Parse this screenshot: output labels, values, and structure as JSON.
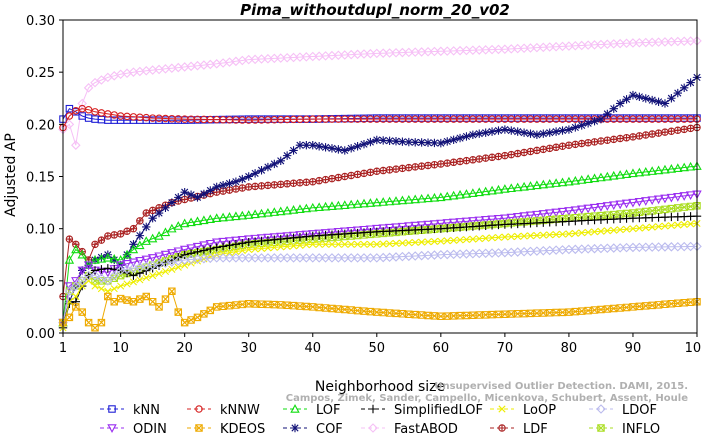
{
  "chart_data": {
    "type": "line",
    "title": "Pima_withoutdupl_norm_20_v02",
    "xlabel": "Neighborhood size",
    "ylabel": "Adjusted AP",
    "xlim": [
      1,
      100
    ],
    "ylim": [
      0,
      0.3
    ],
    "xticks": [
      1,
      10,
      20,
      30,
      40,
      50,
      60,
      70,
      80,
      90,
      100
    ],
    "yticks": [
      "0.00",
      "0.05",
      "0.10",
      "0.15",
      "0.20",
      "0.25",
      "0.30"
    ],
    "grid": false,
    "legend_position": "bottom",
    "watermark": [
      "Campos, Zimek, Sander, Campello, Micenkova, Schubert, Assent, Houle",
      "Unsupervised Outlier Detection. DAMI, 2015."
    ],
    "series": [
      {
        "name": "kNN",
        "color": "#1f1fd6",
        "marker": "square",
        "x": [
          1,
          2,
          3,
          4,
          5,
          6,
          8,
          10,
          15,
          20,
          30,
          40,
          50,
          60,
          70,
          80,
          90,
          100
        ],
        "y": [
          0.205,
          0.215,
          0.212,
          0.208,
          0.206,
          0.205,
          0.204,
          0.204,
          0.204,
          0.204,
          0.205,
          0.205,
          0.206,
          0.206,
          0.206,
          0.206,
          0.206,
          0.206
        ]
      },
      {
        "name": "kNNW",
        "color": "#d62020",
        "marker": "circle",
        "x": [
          1,
          2,
          3,
          4,
          5,
          6,
          8,
          10,
          15,
          20,
          30,
          40,
          50,
          60,
          70,
          80,
          90,
          100
        ],
        "y": [
          0.197,
          0.208,
          0.213,
          0.215,
          0.214,
          0.212,
          0.21,
          0.208,
          0.206,
          0.205,
          0.204,
          0.205,
          0.205,
          0.205,
          0.205,
          0.205,
          0.205,
          0.205
        ]
      },
      {
        "name": "LOF",
        "color": "#11dd11",
        "marker": "triangle-up",
        "x": [
          1,
          2,
          3,
          4,
          5,
          6,
          8,
          10,
          12,
          14,
          16,
          18,
          20,
          25,
          30,
          40,
          50,
          60,
          70,
          80,
          90,
          100
        ],
        "y": [
          0.01,
          0.07,
          0.08,
          0.075,
          0.065,
          0.07,
          0.072,
          0.07,
          0.08,
          0.088,
          0.093,
          0.1,
          0.105,
          0.11,
          0.113,
          0.12,
          0.125,
          0.13,
          0.138,
          0.145,
          0.153,
          0.16
        ]
      },
      {
        "name": "SimplifiedLOF",
        "color": "#000000",
        "marker": "plus",
        "x": [
          1,
          2,
          3,
          4,
          5,
          6,
          8,
          10,
          12,
          15,
          18,
          20,
          25,
          30,
          40,
          50,
          60,
          70,
          80,
          90,
          100
        ],
        "y": [
          0.005,
          0.028,
          0.03,
          0.045,
          0.055,
          0.06,
          0.062,
          0.06,
          0.055,
          0.062,
          0.07,
          0.075,
          0.082,
          0.087,
          0.093,
          0.097,
          0.1,
          0.104,
          0.107,
          0.11,
          0.112
        ]
      },
      {
        "name": "LoOP",
        "color": "#eeee00",
        "marker": "x",
        "x": [
          1,
          2,
          3,
          4,
          5,
          6,
          8,
          10,
          15,
          20,
          25,
          30,
          40,
          50,
          60,
          70,
          80,
          90,
          100
        ],
        "y": [
          0.005,
          0.03,
          0.035,
          0.045,
          0.05,
          0.045,
          0.04,
          0.045,
          0.055,
          0.065,
          0.075,
          0.08,
          0.085,
          0.085,
          0.088,
          0.092,
          0.095,
          0.1,
          0.105
        ]
      },
      {
        "name": "LDOF",
        "color": "#bbbbee",
        "marker": "diamond",
        "x": [
          1,
          2,
          3,
          4,
          5,
          6,
          8,
          10,
          15,
          20,
          25,
          30,
          40,
          50,
          60,
          70,
          80,
          90,
          100
        ],
        "y": [
          0.01,
          0.04,
          0.045,
          0.05,
          0.055,
          0.055,
          0.05,
          0.06,
          0.065,
          0.07,
          0.072,
          0.072,
          0.072,
          0.072,
          0.075,
          0.077,
          0.08,
          0.082,
          0.083
        ]
      },
      {
        "name": "ODIN",
        "color": "#9a2ef0",
        "marker": "triangle-down",
        "x": [
          1,
          2,
          3,
          4,
          5,
          6,
          8,
          10,
          15,
          20,
          25,
          30,
          40,
          50,
          60,
          70,
          80,
          90,
          100
        ],
        "y": [
          0.01,
          0.045,
          0.05,
          0.06,
          0.065,
          0.06,
          0.058,
          0.065,
          0.072,
          0.08,
          0.087,
          0.09,
          0.095,
          0.1,
          0.105,
          0.11,
          0.117,
          0.125,
          0.133
        ]
      },
      {
        "name": "KDEOS",
        "color": "#eeaa00",
        "marker": "square-x",
        "x": [
          1,
          2,
          3,
          4,
          5,
          6,
          7,
          8,
          9,
          10,
          12,
          14,
          16,
          18,
          19,
          20,
          22,
          25,
          30,
          35,
          40,
          50,
          60,
          70,
          80,
          90,
          100
        ],
        "y": [
          0.01,
          0.015,
          0.025,
          0.02,
          0.01,
          0.005,
          0.01,
          0.035,
          0.03,
          0.033,
          0.03,
          0.035,
          0.025,
          0.04,
          0.02,
          0.01,
          0.015,
          0.025,
          0.028,
          0.027,
          0.025,
          0.02,
          0.016,
          0.018,
          0.02,
          0.025,
          0.03
        ]
      },
      {
        "name": "COF",
        "color": "#111177",
        "marker": "asterisk",
        "x": [
          1,
          2,
          3,
          4,
          5,
          6,
          8,
          10,
          12,
          15,
          18,
          20,
          22,
          25,
          28,
          30,
          35,
          38,
          40,
          45,
          50,
          55,
          60,
          65,
          70,
          75,
          80,
          85,
          88,
          90,
          95,
          98,
          100
        ],
        "y": [
          0.01,
          0.03,
          0.045,
          0.06,
          0.065,
          0.07,
          0.075,
          0.065,
          0.085,
          0.11,
          0.125,
          0.135,
          0.13,
          0.14,
          0.145,
          0.15,
          0.165,
          0.18,
          0.18,
          0.175,
          0.185,
          0.183,
          0.182,
          0.19,
          0.195,
          0.19,
          0.195,
          0.205,
          0.22,
          0.228,
          0.22,
          0.235,
          0.245
        ]
      },
      {
        "name": "FastABOD",
        "color": "#f6c0f6",
        "marker": "diamond",
        "x": [
          1,
          2,
          3,
          4,
          5,
          6,
          8,
          10,
          12,
          15,
          20,
          25,
          30,
          40,
          50,
          60,
          70,
          80,
          90,
          100
        ],
        "y": [
          0.195,
          0.2,
          0.18,
          0.22,
          0.235,
          0.24,
          0.245,
          0.248,
          0.25,
          0.252,
          0.255,
          0.258,
          0.262,
          0.265,
          0.268,
          0.27,
          0.272,
          0.275,
          0.278,
          0.28
        ]
      },
      {
        "name": "LDF",
        "color": "#aa2222",
        "marker": "circle-plus",
        "x": [
          1,
          2,
          3,
          4,
          5,
          6,
          8,
          10,
          12,
          14,
          16,
          18,
          20,
          25,
          30,
          40,
          50,
          60,
          70,
          80,
          90,
          100
        ],
        "y": [
          0.035,
          0.09,
          0.085,
          0.078,
          0.07,
          0.085,
          0.093,
          0.095,
          0.1,
          0.115,
          0.12,
          0.125,
          0.128,
          0.135,
          0.14,
          0.145,
          0.155,
          0.162,
          0.17,
          0.18,
          0.188,
          0.197
        ]
      },
      {
        "name": "INFLO",
        "color": "#aadd22",
        "marker": "square-x",
        "x": [
          1,
          2,
          3,
          4,
          5,
          6,
          8,
          10,
          15,
          20,
          25,
          30,
          40,
          50,
          60,
          70,
          80,
          90,
          100
        ],
        "y": [
          0.01,
          0.04,
          0.045,
          0.05,
          0.055,
          0.05,
          0.05,
          0.055,
          0.065,
          0.075,
          0.08,
          0.085,
          0.09,
          0.095,
          0.1,
          0.105,
          0.11,
          0.115,
          0.122
        ]
      }
    ]
  }
}
